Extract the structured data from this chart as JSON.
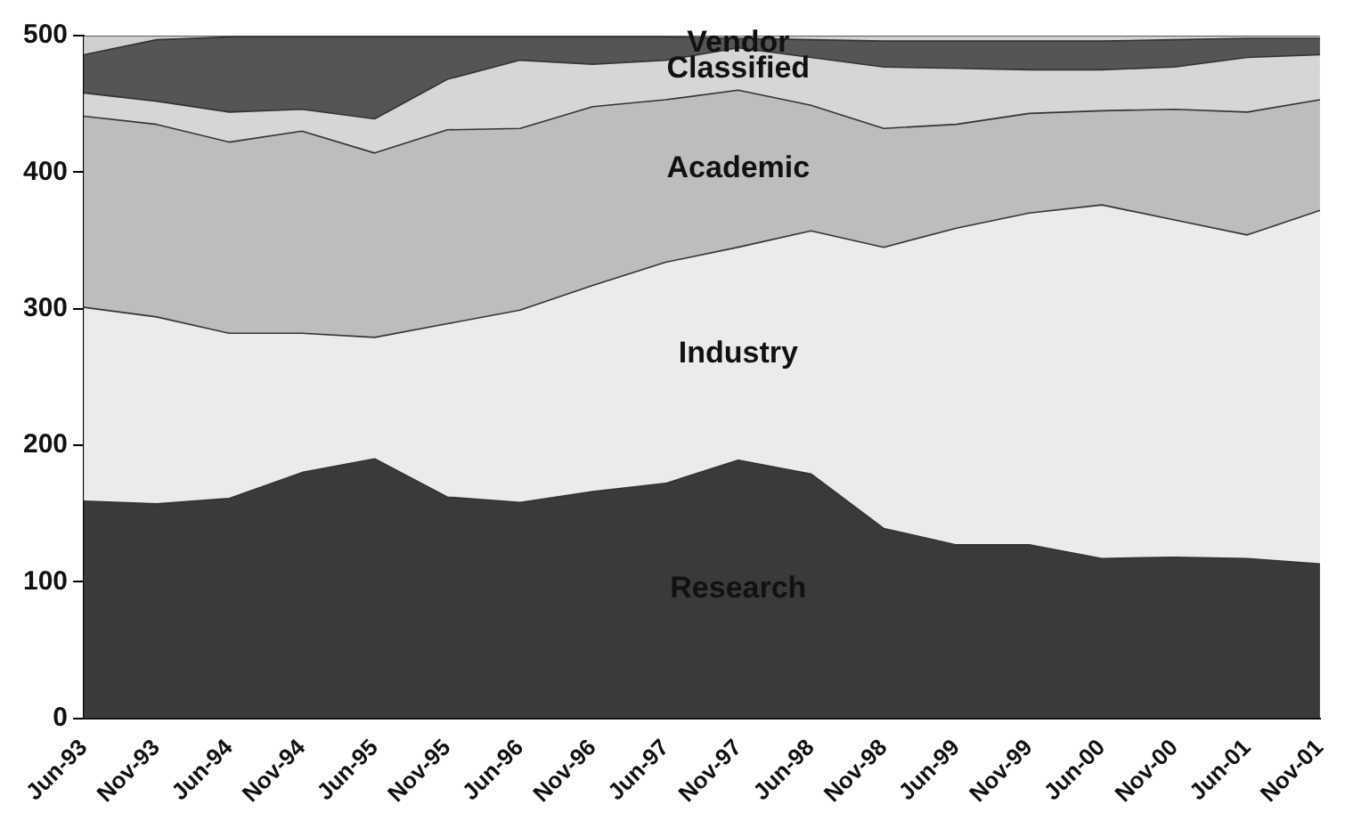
{
  "chart_data": {
    "type": "area",
    "stacked": true,
    "legend": false,
    "grid": false,
    "categories": [
      "Jun-93",
      "Nov-93",
      "Jun-94",
      "Nov-94",
      "Jun-95",
      "Nov-95",
      "Jun-96",
      "Nov-96",
      "Jun-97",
      "Nov-97",
      "Jun-98",
      "Nov-98",
      "Jun-99",
      "Nov-99",
      "Jun-00",
      "Nov-00",
      "Jun-01",
      "Nov-01"
    ],
    "ylim": [
      0,
      500
    ],
    "yticks": [
      0,
      100,
      200,
      300,
      400,
      500
    ],
    "series": [
      {
        "name": "Research",
        "color": "#3a3a3a",
        "values": [
          159,
          157,
          161,
          180,
          190,
          162,
          158,
          166,
          172,
          189,
          179,
          139,
          127,
          127,
          117,
          118,
          117,
          113
        ]
      },
      {
        "name": "Industry",
        "color": "#ebebeb",
        "values": [
          142,
          137,
          121,
          102,
          89,
          127,
          141,
          151,
          162,
          156,
          178,
          206,
          232,
          243,
          259,
          247,
          237,
          259
        ]
      },
      {
        "name": "Academic",
        "color": "#bdbdbd",
        "values": [
          140,
          141,
          140,
          148,
          135,
          142,
          133,
          131,
          119,
          115,
          92,
          87,
          76,
          73,
          69,
          81,
          90,
          81
        ]
      },
      {
        "name": "Classified",
        "color": "#d6d6d6",
        "values": [
          17,
          17,
          22,
          16,
          25,
          37,
          50,
          31,
          29,
          31,
          35,
          45,
          41,
          32,
          30,
          31,
          40,
          33
        ]
      },
      {
        "name": "Vendor",
        "color": "#555555",
        "values": [
          28,
          45,
          55,
          53,
          60,
          31,
          17,
          20,
          17,
          7,
          13,
          19,
          20,
          21,
          21,
          20,
          14,
          12
        ]
      },
      {
        "color": "#cfcfcf",
        "values": [
          14,
          3,
          1,
          1,
          1,
          1,
          1,
          1,
          1,
          2,
          3,
          4,
          4,
          4,
          4,
          3,
          2,
          2
        ]
      }
    ]
  }
}
